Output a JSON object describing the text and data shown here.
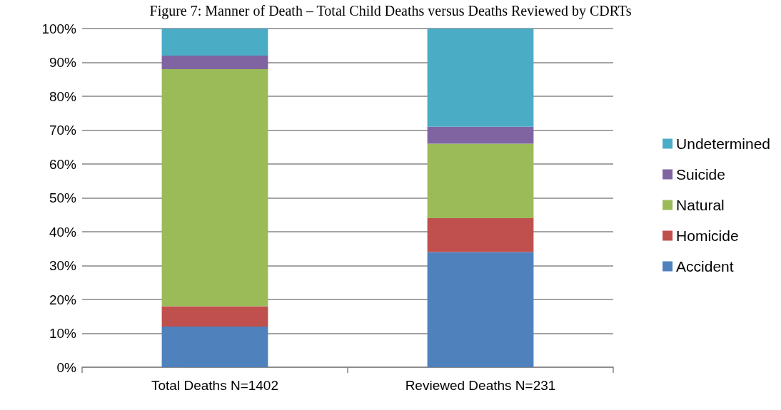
{
  "chart_data": {
    "type": "bar",
    "title": "Figure 7: Manner of Death – Total Child Deaths versus Deaths Reviewed by CDRTs",
    "stacked": true,
    "categories": [
      "Total Deaths N=1402",
      "Reviewed Deaths N=231"
    ],
    "series": [
      {
        "name": "Accident",
        "color": "#4f81bd",
        "values": [
          12,
          34
        ]
      },
      {
        "name": "Homicide",
        "color": "#c0504d",
        "values": [
          6,
          10
        ]
      },
      {
        "name": "Natural",
        "color": "#9bbb59",
        "values": [
          70,
          22
        ]
      },
      {
        "name": "Suicide",
        "color": "#8064a2",
        "values": [
          4,
          5
        ]
      },
      {
        "name": "Undetermined",
        "color": "#4bacc6",
        "values": [
          8,
          29
        ]
      }
    ],
    "ylim": [
      0,
      100
    ],
    "yticks": [
      {
        "value": 0,
        "label": "0%"
      },
      {
        "value": 10,
        "label": "10%"
      },
      {
        "value": 20,
        "label": "20%"
      },
      {
        "value": 30,
        "label": "30%"
      },
      {
        "value": 40,
        "label": "40%"
      },
      {
        "value": 50,
        "label": "50%"
      },
      {
        "value": 60,
        "label": "60%"
      },
      {
        "value": 70,
        "label": "70%"
      },
      {
        "value": 80,
        "label": "80%"
      },
      {
        "value": 90,
        "label": "90%"
      },
      {
        "value": 100,
        "label": "100%"
      }
    ],
    "grid": "y",
    "legend": "right"
  }
}
